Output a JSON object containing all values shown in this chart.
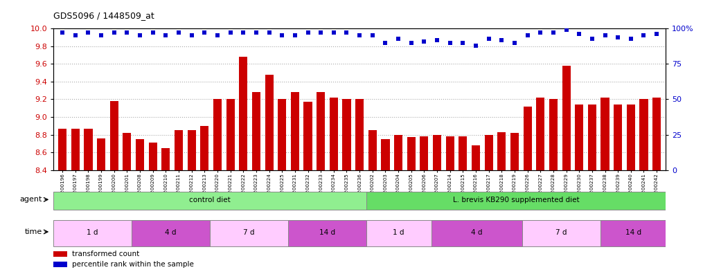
{
  "title": "GDS5096 / 1448509_at",
  "samples": [
    "GSM1200196",
    "GSM1200197",
    "GSM1200198",
    "GSM1200199",
    "GSM1200200",
    "GSM1200201",
    "GSM1200208",
    "GSM1200209",
    "GSM1200210",
    "GSM1200211",
    "GSM1200212",
    "GSM1200213",
    "GSM1200220",
    "GSM1200221",
    "GSM1200222",
    "GSM1200223",
    "GSM1200224",
    "GSM1200225",
    "GSM1200231",
    "GSM1200232",
    "GSM1200233",
    "GSM1200234",
    "GSM1200235",
    "GSM1200236",
    "GSM1200202",
    "GSM1200203",
    "GSM1200204",
    "GSM1200205",
    "GSM1200206",
    "GSM1200207",
    "GSM1200214",
    "GSM1200215",
    "GSM1200216",
    "GSM1200217",
    "GSM1200218",
    "GSM1200219",
    "GSM1200226",
    "GSM1200227",
    "GSM1200228",
    "GSM1200229",
    "GSM1200230",
    "GSM1200237",
    "GSM1200238",
    "GSM1200239",
    "GSM1200240",
    "GSM1200241",
    "GSM1200242"
  ],
  "bar_values": [
    8.87,
    8.87,
    8.87,
    8.76,
    9.18,
    8.82,
    8.75,
    8.71,
    8.65,
    8.85,
    8.85,
    8.9,
    9.2,
    9.2,
    9.68,
    9.28,
    9.48,
    9.2,
    9.28,
    9.17,
    9.28,
    9.22,
    9.2,
    9.2,
    8.85,
    8.75,
    8.8,
    8.77,
    8.78,
    8.8,
    8.78,
    8.78,
    8.68,
    8.8,
    8.83,
    8.82,
    9.12,
    9.22,
    9.2,
    9.58,
    9.14,
    9.14,
    9.22,
    9.14,
    9.14,
    9.2,
    9.22
  ],
  "percentile_values": [
    97,
    95,
    97,
    95,
    97,
    97,
    95,
    97,
    95,
    97,
    95,
    97,
    95,
    97,
    97,
    97,
    97,
    95,
    95,
    97,
    97,
    97,
    97,
    95,
    95,
    90,
    93,
    90,
    91,
    92,
    90,
    90,
    88,
    93,
    92,
    90,
    95,
    97,
    97,
    99,
    96,
    93,
    95,
    94,
    93,
    95,
    96
  ],
  "ylim_left": [
    8.4,
    10.0
  ],
  "ylim_right": [
    0,
    100
  ],
  "yticks_left": [
    8.4,
    8.6,
    8.8,
    9.0,
    9.2,
    9.4,
    9.6,
    9.8,
    10.0
  ],
  "yticks_right": [
    0,
    25,
    50,
    75,
    100
  ],
  "bar_color": "#cc0000",
  "dot_color": "#0000cc",
  "background_color": "#ffffff",
  "grid_color": "#aaaaaa",
  "ctrl_color": "#90ee90",
  "supp_color": "#66dd66",
  "time_light": "#ffccff",
  "time_dark": "#cc55cc",
  "n_ctrl": 24,
  "ctrl_label": "control diet",
  "supp_label": "L. brevis KB290 supplemented diet",
  "time_segs_ctrl": [
    {
      "label": "1 d",
      "start": 0,
      "end": 6
    },
    {
      "label": "4 d",
      "start": 6,
      "end": 12
    },
    {
      "label": "7 d",
      "start": 12,
      "end": 18
    },
    {
      "label": "14 d",
      "start": 18,
      "end": 24
    }
  ],
  "time_segs_supp": [
    {
      "label": "1 d",
      "start": 24,
      "end": 29
    },
    {
      "label": "4 d",
      "start": 29,
      "end": 36
    },
    {
      "label": "7 d",
      "start": 36,
      "end": 42
    },
    {
      "label": "14 d",
      "start": 42,
      "end": 47
    }
  ]
}
